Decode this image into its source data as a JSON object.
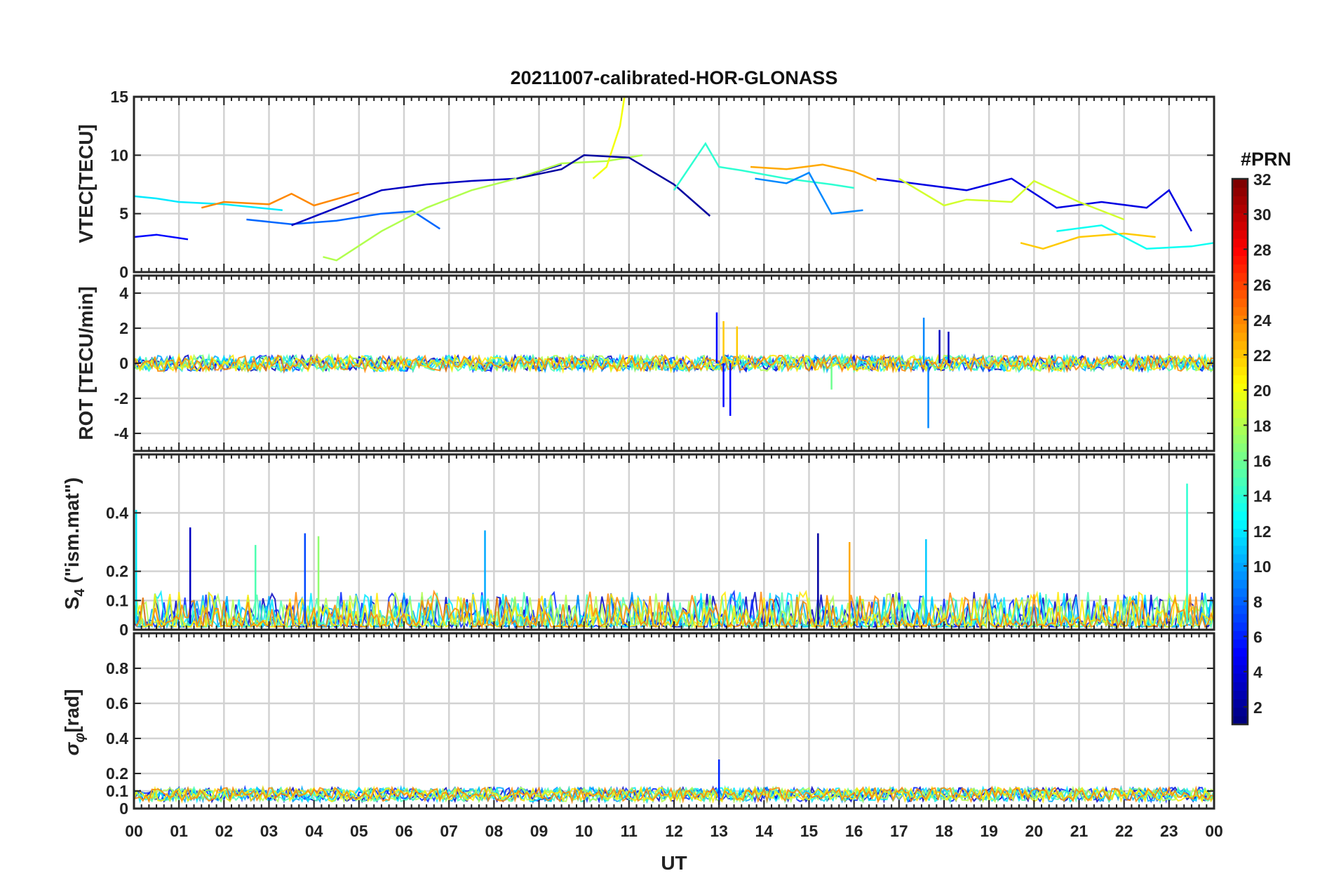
{
  "chart_data": [
    {
      "type": "line",
      "title": "20211007-calibrated-HOR-GLONASS",
      "ylabel": "VTEC[TECU]",
      "xlabel": "",
      "ylim": [
        0,
        15
      ],
      "yticks": [
        0,
        5,
        10,
        15
      ],
      "grid": true,
      "series": [
        {
          "name": "PRN 12",
          "prn": 12,
          "x": [
            0.0,
            0.5,
            1.0,
            2.0,
            3.3
          ],
          "values": [
            6.5,
            6.3,
            6.0,
            5.8,
            5.3
          ]
        },
        {
          "name": "PRN 5",
          "prn": 5,
          "x": [
            0.0,
            0.5,
            1.2
          ],
          "values": [
            3.0,
            3.2,
            2.8
          ]
        },
        {
          "name": "PRN 24",
          "prn": 24,
          "x": [
            1.5,
            2.0,
            3.0,
            3.5,
            4.0,
            5.0
          ],
          "values": [
            5.5,
            6.0,
            5.8,
            6.7,
            5.7,
            6.8
          ]
        },
        {
          "name": "PRN 8",
          "prn": 8,
          "x": [
            2.5,
            3.5,
            4.5,
            5.5,
            6.2,
            6.8
          ],
          "values": [
            4.5,
            4.1,
            4.4,
            5.0,
            5.2,
            3.7
          ]
        },
        {
          "name": "PRN 3",
          "prn": 3,
          "x": [
            3.5,
            4.5,
            5.5,
            6.5,
            7.5,
            8.5,
            9.5
          ],
          "values": [
            4.0,
            5.5,
            7.0,
            7.5,
            7.8,
            8.0,
            9.2
          ]
        },
        {
          "name": "PRN 18",
          "prn": 18,
          "x": [
            4.2,
            4.5,
            5.5,
            6.5,
            7.5,
            8.5,
            9.5,
            10.5,
            11.3
          ],
          "values": [
            1.3,
            1.0,
            3.5,
            5.5,
            7.0,
            8.0,
            9.3,
            9.5,
            10.0
          ]
        },
        {
          "name": "PRN 20",
          "prn": 20,
          "x": [
            10.2,
            10.5,
            10.8,
            10.9
          ],
          "values": [
            8.0,
            9.0,
            12.5,
            15.0
          ]
        },
        {
          "name": "PRN 2",
          "prn": 2,
          "x": [
            8.5,
            9.5,
            10.0,
            11.0,
            12.0,
            12.8
          ],
          "values": [
            8.0,
            8.8,
            10.0,
            9.8,
            7.5,
            4.8
          ]
        },
        {
          "name": "PRN 14",
          "prn": 14,
          "x": [
            12.0,
            12.7,
            13.0,
            13.5,
            14.5,
            15.5,
            16.0
          ],
          "values": [
            7.0,
            11.0,
            9.0,
            8.7,
            8.0,
            7.5,
            7.2
          ]
        },
        {
          "name": "PRN 23",
          "prn": 23,
          "x": [
            13.7,
            14.5,
            15.3,
            16.0,
            16.5
          ],
          "values": [
            9.0,
            8.8,
            9.2,
            8.6,
            7.8
          ]
        },
        {
          "name": "PRN 9",
          "prn": 9,
          "x": [
            13.8,
            14.5,
            15.0,
            15.5,
            16.2
          ],
          "values": [
            8.0,
            7.6,
            8.5,
            5.0,
            5.3
          ]
        },
        {
          "name": "PRN 4",
          "prn": 4,
          "x": [
            16.5,
            17.5,
            18.5,
            19.5,
            20.5,
            21.5,
            22.5,
            23.0,
            23.5
          ],
          "values": [
            8.0,
            7.5,
            7.0,
            8.0,
            5.5,
            6.0,
            5.5,
            7.0,
            3.5
          ]
        },
        {
          "name": "PRN 19",
          "prn": 19,
          "x": [
            17.0,
            18.0,
            18.5,
            19.5,
            20.0,
            21.0,
            22.0
          ],
          "values": [
            8.0,
            5.7,
            6.2,
            6.0,
            7.8,
            6.0,
            4.5
          ]
        },
        {
          "name": "PRN 22",
          "prn": 22,
          "x": [
            19.7,
            20.2,
            21.0,
            22.0,
            22.7
          ],
          "values": [
            2.5,
            2.0,
            3.0,
            3.3,
            3.0
          ]
        },
        {
          "name": "PRN 13",
          "prn": 13,
          "x": [
            20.5,
            21.5,
            22.5,
            23.5,
            24.0
          ],
          "values": [
            3.5,
            4.0,
            2.0,
            2.2,
            2.5
          ]
        }
      ]
    },
    {
      "type": "line",
      "title": "",
      "ylabel": "ROT [TECU/min]",
      "xlabel": "",
      "ylim": [
        -5,
        5
      ],
      "yticks": [
        -4,
        -2,
        0,
        2,
        4
      ],
      "grid": true,
      "series": [
        {
          "name": "PRN 5 spikes",
          "prn": 5,
          "x": [
            12.95,
            13.1,
            13.25
          ],
          "values": [
            2.9,
            -2.5,
            -3.0
          ]
        },
        {
          "name": "PRN 22 spikes",
          "prn": 22,
          "x": [
            13.1,
            13.4
          ],
          "values": [
            2.4,
            2.1
          ]
        },
        {
          "name": "PRN 9 spikes",
          "prn": 9,
          "x": [
            17.55,
            17.65
          ],
          "values": [
            2.6,
            -3.7
          ]
        },
        {
          "name": "PRN 3 spikes",
          "prn": 3,
          "x": [
            17.9,
            18.1
          ],
          "values": [
            1.9,
            1.8
          ]
        },
        {
          "name": "PRN 16 spikes",
          "prn": 16,
          "x": [
            15.5
          ],
          "values": [
            -1.5
          ]
        }
      ]
    },
    {
      "type": "line",
      "title": "",
      "ylabel": "S4 (\"ism.mat\")",
      "ylabel_parts": {
        "main": "S",
        "sub": "4",
        "rest": " (\"ism.mat\")"
      },
      "xlabel": "",
      "ylim": [
        0,
        0.6
      ],
      "yticks": [
        0,
        0.1,
        0.2,
        0.4
      ],
      "ytick_labels": [
        "0",
        "0.1",
        "0.2",
        "0.4"
      ],
      "grid": true,
      "series": [
        {
          "name": "PRN 12 peak",
          "prn": 12,
          "x": [
            0.05
          ],
          "values": [
            0.41
          ]
        },
        {
          "name": "PRN 3 peak",
          "prn": 3,
          "x": [
            1.25
          ],
          "values": [
            0.35
          ]
        },
        {
          "name": "PRN 15 peak",
          "prn": 15,
          "x": [
            2.7
          ],
          "values": [
            0.29
          ]
        },
        {
          "name": "PRN 7 peak",
          "prn": 7,
          "x": [
            3.8
          ],
          "values": [
            0.33
          ]
        },
        {
          "name": "PRN 17 peak",
          "prn": 17,
          "x": [
            4.1
          ],
          "values": [
            0.32
          ]
        },
        {
          "name": "PRN 10 peak",
          "prn": 10,
          "x": [
            7.8
          ],
          "values": [
            0.34
          ]
        },
        {
          "name": "PRN 2 peak",
          "prn": 2,
          "x": [
            15.2
          ],
          "values": [
            0.33
          ]
        },
        {
          "name": "PRN 23 peak",
          "prn": 23,
          "x": [
            15.9
          ],
          "values": [
            0.3
          ]
        },
        {
          "name": "PRN 11 peak",
          "prn": 11,
          "x": [
            17.6
          ],
          "values": [
            0.31
          ]
        },
        {
          "name": "PRN 14 peak",
          "prn": 14,
          "x": [
            23.4
          ],
          "values": [
            0.5
          ]
        }
      ]
    },
    {
      "type": "line",
      "title": "",
      "ylabel": "σφ[rad]",
      "ylabel_parts": {
        "main": "σ",
        "sub": "φ",
        "rest": "[rad]"
      },
      "xlabel": "UT",
      "ylim": [
        0,
        1
      ],
      "yticks": [
        0,
        0.1,
        0.2,
        0.4,
        0.6,
        0.8
      ],
      "ytick_labels": [
        "0",
        "0.1",
        "0.2",
        "0.4",
        "0.6",
        "0.8"
      ],
      "grid": true,
      "series": [
        {
          "name": "PRN 6 peak",
          "prn": 6,
          "x": [
            13.0
          ],
          "values": [
            0.28
          ]
        }
      ]
    }
  ],
  "xaxis": {
    "xlim": [
      0,
      24
    ],
    "tick_labels": [
      "00",
      "01",
      "02",
      "03",
      "04",
      "05",
      "06",
      "07",
      "08",
      "09",
      "10",
      "11",
      "12",
      "13",
      "14",
      "15",
      "16",
      "17",
      "18",
      "19",
      "20",
      "21",
      "22",
      "23",
      "00"
    ]
  },
  "colorbar": {
    "title": "#PRN",
    "range": [
      1,
      32
    ],
    "tick_labels": [
      "2",
      "4",
      "6",
      "8",
      "10",
      "12",
      "14",
      "16",
      "18",
      "20",
      "22",
      "24",
      "26",
      "28",
      "30",
      "32"
    ],
    "colormap": "jet"
  }
}
